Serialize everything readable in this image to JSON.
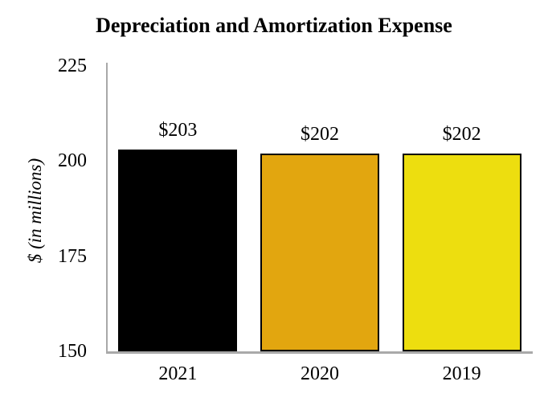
{
  "chart_data": {
    "type": "bar",
    "title": "Depreciation and Amortization Expense",
    "ylabel": "$ (in millions)",
    "xlabel": "",
    "categories": [
      "2021",
      "2020",
      "2019"
    ],
    "values": [
      203,
      202,
      202
    ],
    "value_labels": [
      "$203",
      "$202",
      "$202"
    ],
    "bar_colors": [
      "#000000",
      "#e2a60f",
      "#edde0f"
    ],
    "bar_border_color": "#000000",
    "axis_color": "#a9a9a9",
    "text_color": "#000000",
    "ylim": [
      150,
      225
    ],
    "yticks": [
      225,
      200,
      175,
      150
    ],
    "grid": false,
    "legend": false
  }
}
